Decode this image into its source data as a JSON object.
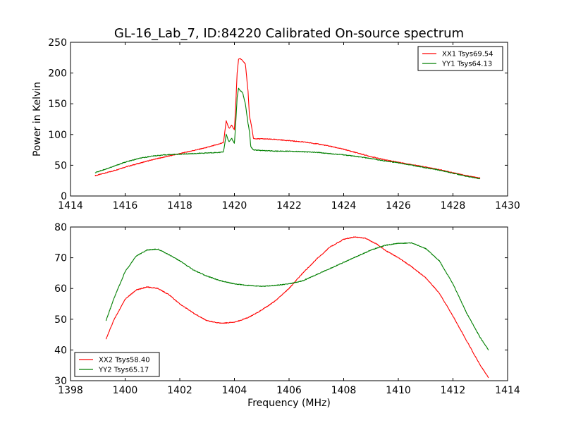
{
  "figure": {
    "title": "GL-16_Lab_7, ID:84220 Calibrated On-source spectrum"
  },
  "chart_data": [
    {
      "type": "line",
      "xlim": [
        1414,
        1430
      ],
      "ylim": [
        0,
        250
      ],
      "xticks": [
        1414,
        1416,
        1418,
        1420,
        1422,
        1424,
        1426,
        1428,
        1430
      ],
      "yticks": [
        0,
        50,
        100,
        150,
        200,
        250
      ],
      "xlabel": "",
      "ylabel": "Power in Kelvin",
      "legend_position": "top-right",
      "grid": false,
      "series": [
        {
          "name": "XX1 Tsys69.54",
          "color": "#ff0000",
          "x": [
            1414.9,
            1415.5,
            1416.0,
            1416.5,
            1417.0,
            1417.5,
            1418.0,
            1418.5,
            1419.0,
            1419.4,
            1419.6,
            1419.7,
            1419.8,
            1419.9,
            1420.0,
            1420.05,
            1420.1,
            1420.15,
            1420.2,
            1420.3,
            1420.4,
            1420.5,
            1420.55,
            1420.6,
            1420.7,
            1421.0,
            1421.5,
            1422.0,
            1422.5,
            1423.0,
            1423.5,
            1424.0,
            1424.5,
            1425.0,
            1425.5,
            1426.0,
            1426.5,
            1427.0,
            1427.5,
            1428.0,
            1428.5,
            1429.0
          ],
          "y": [
            33,
            40,
            47,
            53,
            59,
            64,
            69,
            74,
            79,
            84,
            87,
            122,
            110,
            115,
            108,
            150,
            200,
            222,
            224,
            220,
            215,
            170,
            130,
            120,
            93,
            93,
            92,
            90,
            88,
            85,
            81,
            76,
            70,
            64,
            59,
            55,
            51,
            47,
            43,
            38,
            33,
            29
          ]
        },
        {
          "name": "YY1 Tsys64.13",
          "color": "#007f00",
          "x": [
            1414.9,
            1415.5,
            1416.0,
            1416.5,
            1417.0,
            1417.5,
            1418.0,
            1418.5,
            1419.0,
            1419.5,
            1419.6,
            1419.7,
            1419.8,
            1419.9,
            1420.0,
            1420.05,
            1420.1,
            1420.15,
            1420.2,
            1420.3,
            1420.4,
            1420.5,
            1420.55,
            1420.6,
            1420.7,
            1421.0,
            1421.5,
            1422.0,
            1422.5,
            1423.0,
            1423.5,
            1424.0,
            1424.5,
            1425.0,
            1425.5,
            1426.0,
            1426.5,
            1427.0,
            1427.5,
            1428.0,
            1428.5,
            1429.0
          ],
          "y": [
            38,
            47,
            55,
            61,
            65,
            67,
            68,
            69,
            70,
            71,
            72,
            100,
            88,
            94,
            85,
            120,
            160,
            175,
            172,
            168,
            150,
            118,
            105,
            80,
            75,
            74,
            73,
            73,
            72,
            71,
            69,
            67,
            64,
            61,
            57,
            54,
            50,
            46,
            42,
            37,
            32,
            28
          ]
        }
      ]
    },
    {
      "type": "line",
      "xlim": [
        1398,
        1414
      ],
      "ylim": [
        30,
        80
      ],
      "xticks": [
        1398,
        1400,
        1402,
        1404,
        1406,
        1408,
        1410,
        1412,
        1414
      ],
      "yticks": [
        30,
        40,
        50,
        60,
        70,
        80
      ],
      "xlabel": "Frequency (MHz)",
      "ylabel": "",
      "legend_position": "bottom-left",
      "grid": false,
      "series": [
        {
          "name": "XX2 Tsys58.40",
          "color": "#ff0000",
          "x": [
            1399.3,
            1399.6,
            1400.0,
            1400.4,
            1400.8,
            1401.2,
            1401.6,
            1402.0,
            1402.5,
            1403.0,
            1403.5,
            1404.0,
            1404.5,
            1405.0,
            1405.5,
            1406.0,
            1406.5,
            1407.0,
            1407.5,
            1408.0,
            1408.4,
            1408.8,
            1409.2,
            1409.6,
            1410.0,
            1410.5,
            1411.0,
            1411.5,
            1412.0,
            1412.5,
            1413.0,
            1413.3
          ],
          "y": [
            43.5,
            50,
            56.5,
            59.5,
            60.5,
            60,
            58,
            55,
            52,
            49.5,
            48.7,
            49,
            50.5,
            53,
            56,
            60,
            65,
            69.5,
            73.5,
            76,
            76.8,
            76.3,
            74.5,
            72,
            70,
            67,
            63.5,
            58.5,
            51,
            43,
            35,
            31
          ]
        },
        {
          "name": "YY2 Tsys65.17",
          "color": "#007f00",
          "x": [
            1399.3,
            1399.6,
            1400.0,
            1400.4,
            1400.8,
            1401.2,
            1401.6,
            1402.0,
            1402.5,
            1403.0,
            1403.5,
            1404.0,
            1404.5,
            1405.0,
            1405.5,
            1406.0,
            1406.5,
            1407.0,
            1407.5,
            1408.0,
            1408.5,
            1409.0,
            1409.5,
            1410.0,
            1410.5,
            1411.0,
            1411.5,
            1412.0,
            1412.5,
            1413.0,
            1413.3
          ],
          "y": [
            49.5,
            57,
            65.5,
            70.5,
            72.5,
            72.8,
            71,
            69,
            66,
            64,
            62.5,
            61.5,
            61,
            60.7,
            61,
            61.5,
            62.5,
            64.5,
            66.5,
            68.5,
            70.5,
            72.5,
            74,
            74.7,
            74.8,
            73,
            69,
            61.5,
            52,
            44,
            40
          ]
        }
      ]
    }
  ]
}
